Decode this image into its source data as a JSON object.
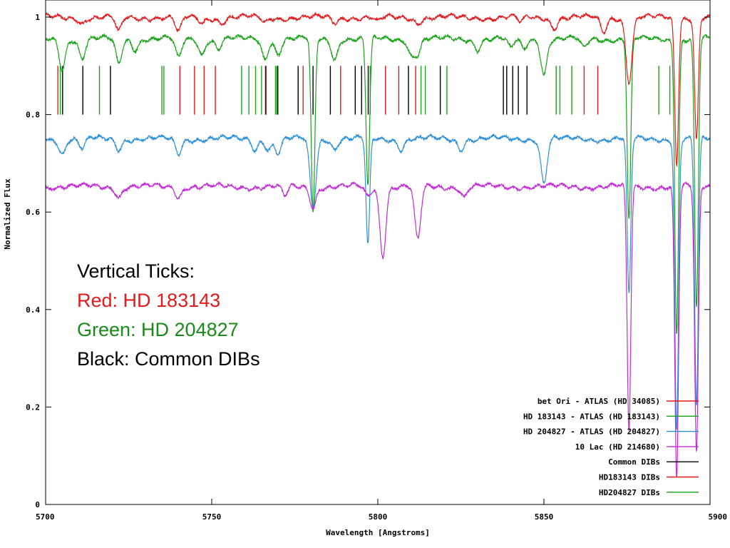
{
  "chart_data": {
    "type": "line",
    "title": "",
    "xlabel": "Wavelength [Angstroms]",
    "ylabel": "Normalized Flux",
    "xlim": [
      5700,
      5900
    ],
    "ylim": [
      0,
      1.03
    ],
    "x_ticks": [
      {
        "value": 5700,
        "label": "5700"
      },
      {
        "value": 5750,
        "label": "5750"
      },
      {
        "value": 5800,
        "label": "5800"
      },
      {
        "value": 5850,
        "label": "5850"
      },
      {
        "value": 5900,
        "label": "5900"
      }
    ],
    "y_ticks": [
      {
        "value": 0,
        "label": "0"
      },
      {
        "value": 0.2,
        "label": "0.2"
      },
      {
        "value": 0.4,
        "label": "0.4"
      },
      {
        "value": 0.6,
        "label": "0.6"
      },
      {
        "value": 0.8,
        "label": "0.8"
      },
      {
        "value": 1,
        "label": "1"
      }
    ],
    "legend_position": "bottom-right",
    "series": [
      {
        "name": "bet Ori - ATLAS (HD 34085)",
        "color": "#e41a1c",
        "continuum": 0.999,
        "lines": [
          [
            5711,
            0.01
          ],
          [
            5722,
            0.03
          ],
          [
            5740,
            0.03
          ],
          [
            5747,
            0.01
          ],
          [
            5753,
            0.01
          ],
          [
            5766,
            0.01
          ],
          [
            5787,
            0.01
          ],
          [
            5800,
            0.01
          ],
          [
            5812,
            0.01
          ],
          [
            5843,
            0.01
          ],
          [
            5853,
            0.02
          ],
          [
            5868,
            0.03
          ],
          [
            5875.6,
            0.13
          ],
          [
            5889.95,
            0.3
          ],
          [
            5895.92,
            0.25
          ]
        ]
      },
      {
        "name": "HD 183143 - ATLAS (HD 183143)",
        "color": "#1aa31a",
        "continuum": 0.955,
        "lines": [
          [
            5705,
            0.06
          ],
          [
            5711,
            0.04
          ],
          [
            5722,
            0.05
          ],
          [
            5727,
            0.02
          ],
          [
            5740,
            0.04
          ],
          [
            5747,
            0.03
          ],
          [
            5752,
            0.02
          ],
          [
            5766,
            0.04
          ],
          [
            5770,
            0.03
          ],
          [
            5780.5,
            0.36
          ],
          [
            5787,
            0.04
          ],
          [
            5797,
            0.3
          ],
          [
            5810,
            0.03
          ],
          [
            5812,
            0.03
          ],
          [
            5830,
            0.02
          ],
          [
            5840,
            0.02
          ],
          [
            5844,
            0.02
          ],
          [
            5850,
            0.07
          ],
          [
            5862,
            0.02
          ],
          [
            5875.6,
            0.37
          ],
          [
            5889.95,
            0.6
          ],
          [
            5895.92,
            0.55
          ]
        ]
      },
      {
        "name": "HD 204827 - ATLAS (HD 204827)",
        "color": "#2b8fdc",
        "continuum": 0.75,
        "lines": [
          [
            5705,
            0.03
          ],
          [
            5711,
            0.02
          ],
          [
            5722,
            0.02
          ],
          [
            5740,
            0.03
          ],
          [
            5763,
            0.02
          ],
          [
            5767,
            0.02
          ],
          [
            5770,
            0.03
          ],
          [
            5780.5,
            0.14
          ],
          [
            5787,
            0.02
          ],
          [
            5797,
            0.22
          ],
          [
            5807,
            0.02
          ],
          [
            5825,
            0.02
          ],
          [
            5850,
            0.09
          ],
          [
            5875.6,
            0.32
          ],
          [
            5889.95,
            0.6
          ],
          [
            5895.92,
            0.55
          ]
        ]
      },
      {
        "name": "10 Lac (HD 214680)",
        "color": "#c22ad8",
        "continuum": 0.652,
        "lines": [
          [
            5722,
            0.02
          ],
          [
            5740,
            0.02
          ],
          [
            5772,
            0.02
          ],
          [
            5780.5,
            0.04
          ],
          [
            5797,
            0.02
          ],
          [
            5801.5,
            0.14
          ],
          [
            5812,
            0.11
          ],
          [
            5826,
            0.02
          ],
          [
            5875.6,
            0.5
          ],
          [
            5889.95,
            0.6
          ],
          [
            5895.92,
            0.55
          ]
        ]
      }
    ],
    "dib_sets": [
      {
        "name": "Common DIBs",
        "color": "#000000",
        "y_range": [
          0.8,
          0.9
        ],
        "positions": [
          5705.1,
          5711.2,
          5719.5,
          5766.2,
          5769.9,
          5776.0,
          5780.5,
          5785.7,
          5793.2,
          5795.1,
          5797.1,
          5809.2,
          5818.8,
          5837.8,
          5838.8,
          5840.6,
          5842.3,
          5844.9
        ]
      },
      {
        "name": "HD183143 DIBs",
        "color": "#e41a1c",
        "y_range": [
          0.8,
          0.9
        ],
        "positions": [
          5703.7,
          5740.4,
          5744.8,
          5747.7,
          5751.1,
          5766.4,
          5777.5,
          5788.8,
          5802.3,
          5806.3,
          5811.4,
          5862.1,
          5866.2
        ]
      },
      {
        "name": "HD204827 DIBs",
        "color": "#1aa31a",
        "y_range": [
          0.8,
          0.9
        ],
        "positions": [
          5704.4,
          5716.2,
          5735.0,
          5735.6,
          5759.0,
          5761.2,
          5763.2,
          5765.0,
          5769.2,
          5769.6,
          5797.7,
          5813.0,
          5814.3,
          5820.8,
          5853.7,
          5854.8,
          5858.4,
          5884.6,
          5887.9
        ]
      }
    ]
  },
  "note": {
    "heading": "Vertical Ticks:",
    "line_red": "Red: HD 183143",
    "line_green": "Green: HD 204827",
    "line_black": "Black: Common DIBs",
    "color_red": "#e41a1c",
    "color_green": "#1a8a1a",
    "color_black": "#000000"
  }
}
